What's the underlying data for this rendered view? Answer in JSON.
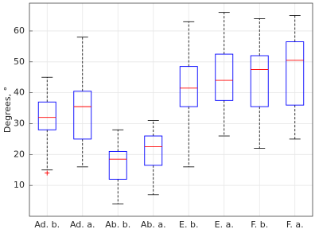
{
  "chart_data": {
    "type": "box",
    "ylabel": "Degrees, °",
    "categories": [
      "Ad. b.",
      "Ad. a.",
      "Ab. b.",
      "Ab. a.",
      "E. b.",
      "E. a.",
      "F. b.",
      "F. a."
    ],
    "boxes": [
      {
        "min": 15,
        "q1": 28,
        "median": 32,
        "q3": 37,
        "max": 45,
        "outliers": [
          14
        ]
      },
      {
        "min": 16,
        "q1": 25,
        "median": 35.5,
        "q3": 40.5,
        "max": 58
      },
      {
        "min": 4,
        "q1": 12,
        "median": 18.5,
        "q3": 21,
        "max": 28
      },
      {
        "min": 7,
        "q1": 16.5,
        "median": 22.5,
        "q3": 26,
        "max": 31
      },
      {
        "min": 16,
        "q1": 35.5,
        "median": 41.5,
        "q3": 48.5,
        "max": 63
      },
      {
        "min": 26,
        "q1": 37.5,
        "median": 44,
        "q3": 52.5,
        "max": 66
      },
      {
        "min": 22,
        "q1": 35.5,
        "median": 47.5,
        "q3": 52,
        "max": 64
      },
      {
        "min": 25,
        "q1": 36,
        "median": 50.5,
        "q3": 56.5,
        "max": 65
      }
    ],
    "box_color": "#0000ff",
    "median_color": "#ff0000",
    "whisker_color": "#000000",
    "ylim": [
      0,
      69
    ],
    "yticks": [
      10,
      20,
      30,
      40,
      50,
      60
    ],
    "grid": true
  }
}
